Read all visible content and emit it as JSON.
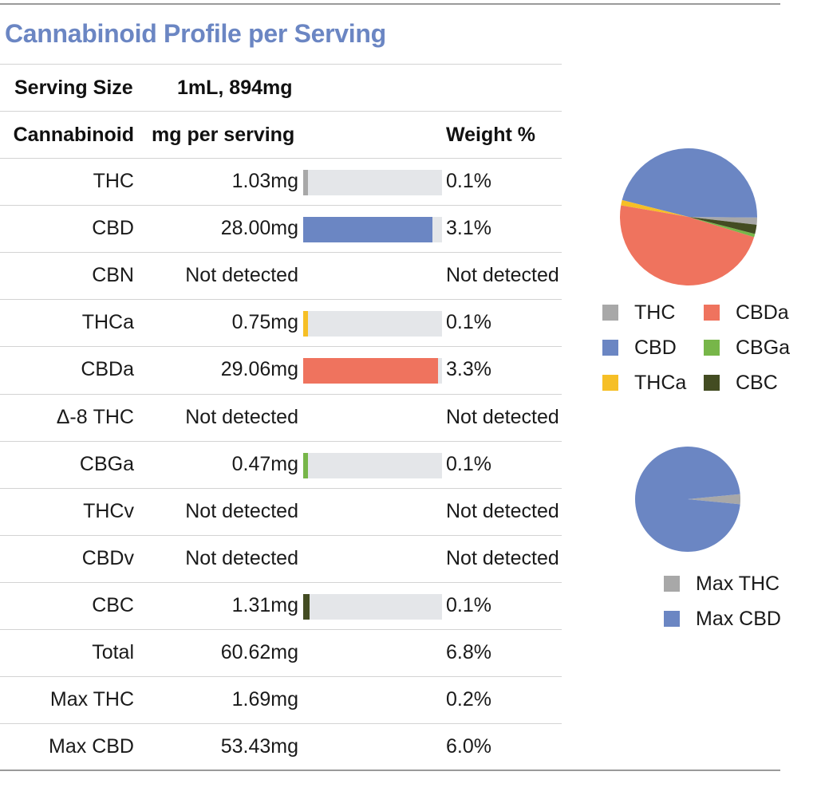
{
  "title": "Cannabinoid Profile per Serving",
  "serving": {
    "label": "Serving Size",
    "value": "1mL, 894mg"
  },
  "columns": {
    "cannabinoid": "Cannabinoid",
    "mg": "mg per serving",
    "weight": "Weight %"
  },
  "bar_max_mg": 30,
  "rows": [
    {
      "name": "THC",
      "mg": "1.03mg",
      "mg_value": 1.03,
      "weight": "0.1%",
      "color": "#a8a8a8"
    },
    {
      "name": "CBD",
      "mg": "28.00mg",
      "mg_value": 28.0,
      "weight": "3.1%",
      "color": "#6b86c3"
    },
    {
      "name": "CBN",
      "mg": "Not detected",
      "weight": "Not detected"
    },
    {
      "name": "THCa",
      "mg": "0.75mg",
      "mg_value": 0.75,
      "weight": "0.1%",
      "color": "#f6bf26"
    },
    {
      "name": "CBDa",
      "mg": "29.06mg",
      "mg_value": 29.06,
      "weight": "3.3%",
      "color": "#ef735e"
    },
    {
      "name": "Δ-8 THC",
      "mg": "Not detected",
      "weight": "Not detected"
    },
    {
      "name": "CBGa",
      "mg": "0.47mg",
      "mg_value": 0.47,
      "weight": "0.1%",
      "color": "#77b649"
    },
    {
      "name": "THCv",
      "mg": "Not detected",
      "weight": "Not detected"
    },
    {
      "name": "CBDv",
      "mg": "Not detected",
      "weight": "Not detected"
    },
    {
      "name": "CBC",
      "mg": "1.31mg",
      "mg_value": 1.31,
      "weight": "0.1%",
      "color": "#434c22"
    },
    {
      "name": "Total",
      "mg": "60.62mg",
      "weight": "6.8%"
    },
    {
      "name": "Max THC",
      "mg": "1.69mg",
      "weight": "0.2%"
    },
    {
      "name": "Max CBD",
      "mg": "53.43mg",
      "weight": "6.0%"
    }
  ],
  "chart_data": [
    {
      "type": "pie",
      "labels": [
        "THC",
        "CBD",
        "THCa",
        "CBDa",
        "CBGa",
        "CBC"
      ],
      "values": [
        1.03,
        28.0,
        0.75,
        29.06,
        0.47,
        1.31
      ],
      "colors": [
        "#a8a8a8",
        "#6b86c3",
        "#f6bf26",
        "#ef735e",
        "#77b649",
        "#434c22"
      ],
      "legend_labels": [
        "THC",
        "CBDa",
        "CBD",
        "CBGa",
        "THCa",
        "CBC"
      ],
      "legend_colors": [
        "#a8a8a8",
        "#ef735e",
        "#6b86c3",
        "#77b649",
        "#f6bf26",
        "#434c22"
      ],
      "legend": "bottom"
    },
    {
      "type": "pie",
      "labels": [
        "Max THC",
        "Max CBD"
      ],
      "values": [
        1.69,
        53.43
      ],
      "colors": [
        "#a8a8a8",
        "#6b86c3"
      ],
      "legend": "bottom"
    }
  ]
}
